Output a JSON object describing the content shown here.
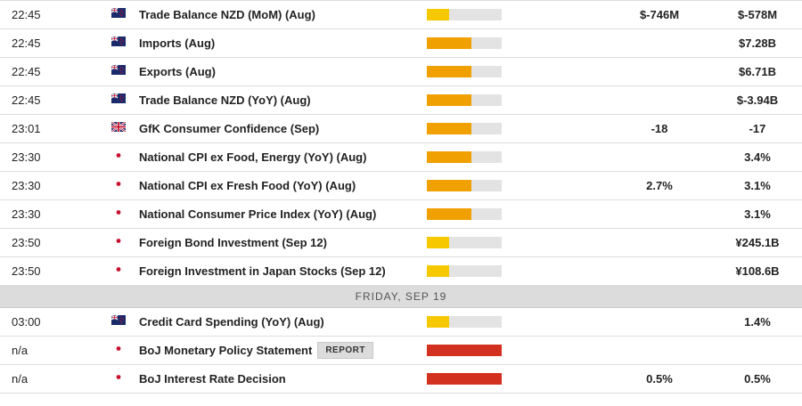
{
  "colors": {
    "impact_low": "#f5c800",
    "impact_medium": "#f0a000",
    "impact_high": "#d3311f",
    "impact_track": "#e3e3e3",
    "day_separator_bg": "#dcdcdc"
  },
  "rows_before": [
    {
      "time": "22:45",
      "flag_icon": "new-zealand-flag-icon",
      "event": "Trade Balance NZD (MoM) (Aug)",
      "impact_level": 0.3,
      "impact": "low",
      "actual": "$-746M",
      "previous": "$-578M"
    },
    {
      "time": "22:45",
      "flag_icon": "new-zealand-flag-icon",
      "event": "Imports (Aug)",
      "impact_level": 0.6,
      "impact": "medium",
      "actual": "",
      "previous": "$7.28B"
    },
    {
      "time": "22:45",
      "flag_icon": "new-zealand-flag-icon",
      "event": "Exports (Aug)",
      "impact_level": 0.6,
      "impact": "medium",
      "actual": "",
      "previous": "$6.71B"
    },
    {
      "time": "22:45",
      "flag_icon": "new-zealand-flag-icon",
      "event": "Trade Balance NZD (YoY) (Aug)",
      "impact_level": 0.6,
      "impact": "medium",
      "actual": "",
      "previous": "$-3.94B"
    },
    {
      "time": "23:01",
      "flag_icon": "united-kingdom-flag-icon",
      "event": "GfK Consumer Confidence (Sep)",
      "impact_level": 0.6,
      "impact": "medium",
      "actual": "-18",
      "previous": "-17"
    },
    {
      "time": "23:30",
      "flag_icon": "japan-flag-icon",
      "event": "National CPI ex Food, Energy (YoY) (Aug)",
      "impact_level": 0.6,
      "impact": "medium",
      "actual": "",
      "previous": "3.4%"
    },
    {
      "time": "23:30",
      "flag_icon": "japan-flag-icon",
      "event": "National CPI ex Fresh Food (YoY) (Aug)",
      "impact_level": 0.6,
      "impact": "medium",
      "actual": "2.7%",
      "previous": "3.1%"
    },
    {
      "time": "23:30",
      "flag_icon": "japan-flag-icon",
      "event": "National Consumer Price Index (YoY) (Aug)",
      "impact_level": 0.6,
      "impact": "medium",
      "actual": "",
      "previous": "3.1%"
    },
    {
      "time": "23:50",
      "flag_icon": "japan-flag-icon",
      "event": "Foreign Bond Investment (Sep 12)",
      "impact_level": 0.3,
      "impact": "low",
      "actual": "",
      "previous": "¥245.1B"
    },
    {
      "time": "23:50",
      "flag_icon": "japan-flag-icon",
      "event": "Foreign Investment in Japan Stocks (Sep 12)",
      "impact_level": 0.3,
      "impact": "low",
      "actual": "",
      "previous": "¥108.6B"
    }
  ],
  "day_separator": {
    "label": "FRIDAY, SEP 19"
  },
  "rows_after": [
    {
      "time": "03:00",
      "flag_icon": "new-zealand-flag-icon",
      "event": "Credit Card Spending (YoY) (Aug)",
      "impact_level": 0.3,
      "impact": "low",
      "actual": "",
      "previous": "1.4%"
    },
    {
      "time": "n/a",
      "flag_icon": "japan-flag-icon",
      "event": "BoJ Monetary Policy Statement",
      "report_label": "REPORT",
      "impact_level": 1.0,
      "impact": "high",
      "actual": "",
      "previous": ""
    },
    {
      "time": "n/a",
      "flag_icon": "japan-flag-icon",
      "event": "BoJ Interest Rate Decision",
      "impact_level": 1.0,
      "impact": "high",
      "actual": "0.5%",
      "previous": "0.5%"
    }
  ]
}
